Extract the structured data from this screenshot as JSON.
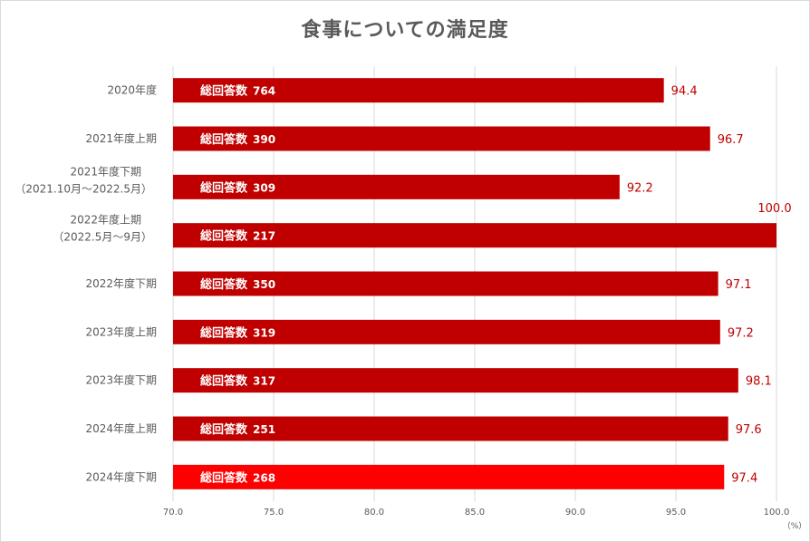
{
  "chart_data": {
    "type": "bar",
    "orientation": "horizontal",
    "title": "食事についての満足度",
    "unit_label": "（%）",
    "xlim": [
      70.0,
      100.0
    ],
    "x_ticks": [
      "70.0",
      "75.0",
      "80.0",
      "85.0",
      "90.0",
      "95.0",
      "100.0"
    ],
    "inner_label_prefix": "総回答数",
    "grid": "vertical",
    "colors": {
      "bar": "#c00000",
      "highlight": "#ff0000",
      "value_label": "#c00000"
    },
    "categories": [
      [
        "2020年度"
      ],
      [
        "2021年度上期"
      ],
      [
        "2021年度下期",
        "（2021.10月～2022.5月）"
      ],
      [
        "2022年度上期",
        "（2022.5月～9月）"
      ],
      [
        "2022年度下期"
      ],
      [
        "2023年度上期"
      ],
      [
        "2023年度下期"
      ],
      [
        "2024年度上期"
      ],
      [
        "2024年度下期"
      ]
    ],
    "values": [
      94.4,
      96.7,
      92.2,
      100.0,
      97.1,
      97.2,
      98.1,
      97.6,
      97.4
    ],
    "total_responses": [
      "764",
      "390",
      "309",
      "217",
      "350",
      "319",
      "317",
      "251",
      "268"
    ]
  }
}
